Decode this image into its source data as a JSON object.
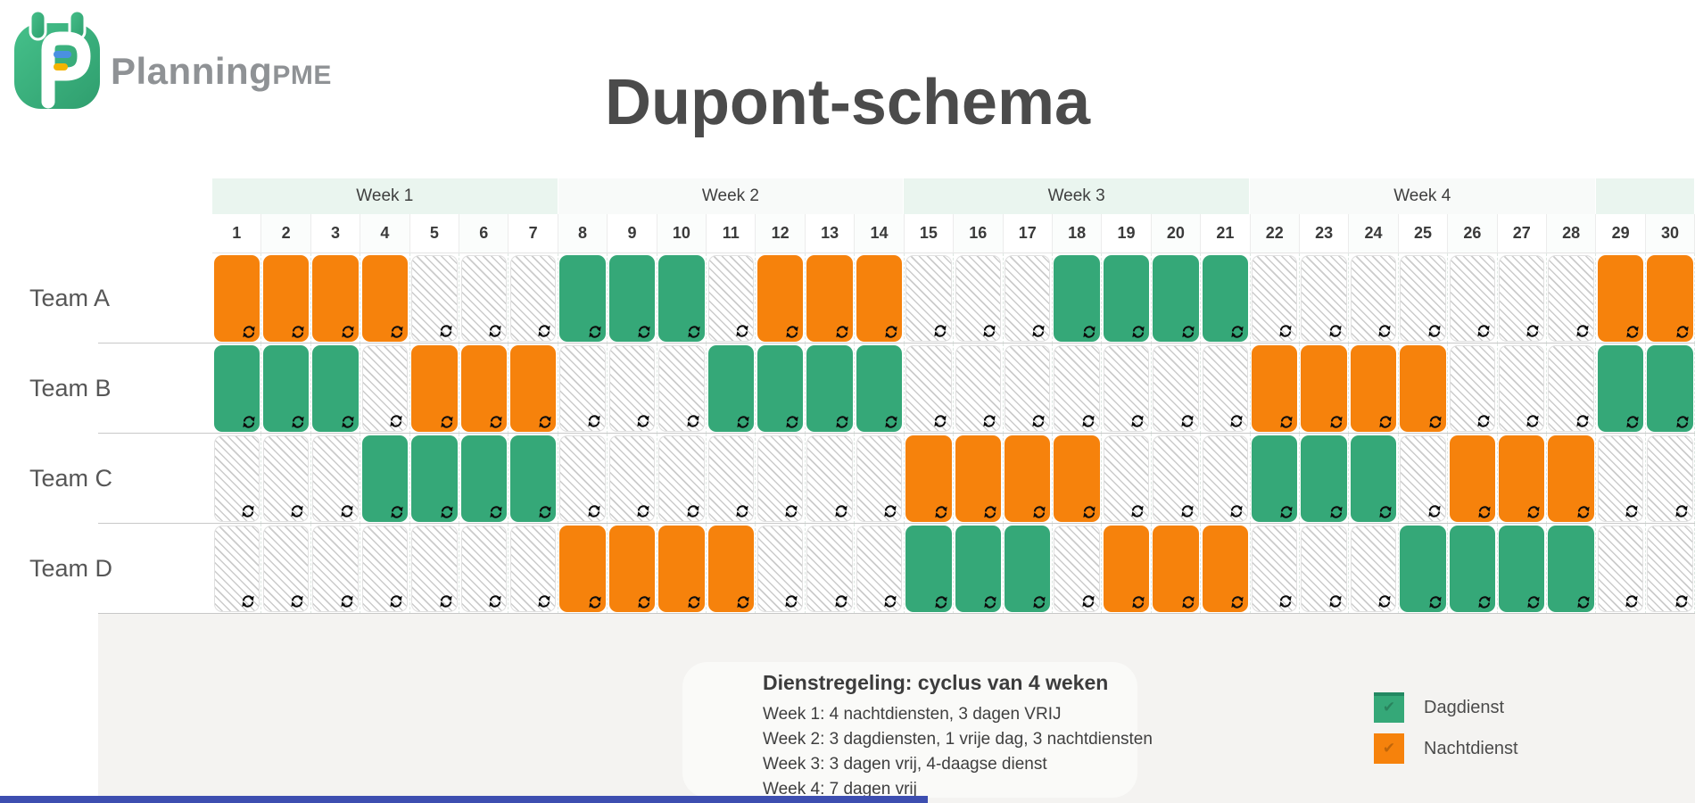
{
  "brand": {
    "main": "Planning",
    "suffix": "PME"
  },
  "page_title": "Dupont-schema",
  "calendar": {
    "weeks": [
      "Week 1",
      "Week 2",
      "Week 3",
      "Week 4",
      ""
    ],
    "week_spans": [
      7,
      7,
      7,
      7,
      2
    ],
    "days": [
      "1",
      "2",
      "3",
      "4",
      "5",
      "6",
      "7",
      "8",
      "9",
      "10",
      "11",
      "12",
      "13",
      "14",
      "15",
      "16",
      "17",
      "18",
      "19",
      "20",
      "21",
      "22",
      "23",
      "24",
      "25",
      "26",
      "27",
      "28",
      "29",
      "30"
    ],
    "teams": [
      {
        "name": "Team A",
        "schedule": "NNNNVVVDDDVNNNVVVDDDDVVVVVVVNN"
      },
      {
        "name": "Team B",
        "schedule": "DDDVNNNVVVDDDDVVVVVVVNNNNVVVDD"
      },
      {
        "name": "Team C",
        "schedule": "VVVDDDDVVVVVVVNNNNVVVDDDVNNNVV"
      },
      {
        "name": "Team D",
        "schedule": "VVVVVVVNNNNVVVDDDVNNNVVVDDDDVV"
      }
    ],
    "cell_states": {
      "D": "Dagdienst",
      "N": "Nachtdienst",
      "V": "Vrij"
    }
  },
  "legend": [
    {
      "type": "D",
      "label": "Dagdienst"
    },
    {
      "type": "N",
      "label": "Nachtdienst"
    }
  ],
  "notes": {
    "title": "Dienstregeling: cyclus van 4 weken",
    "lines": [
      "Week 1: 4 nachtdiensten, 3 dagen VRIJ",
      "Week 2: 3 dagdiensten, 1 vrije dag, 3 nachtdiensten",
      "Week 3: 3 dagen vrij, 4-daagse dienst",
      "Week 4: 7 dagen vrij"
    ]
  },
  "colors": {
    "dagdienst": "#35a878",
    "nachtdienst": "#f6820c",
    "week_tint": "#eaf5ef",
    "accent_bar": "#3d4eb0"
  }
}
